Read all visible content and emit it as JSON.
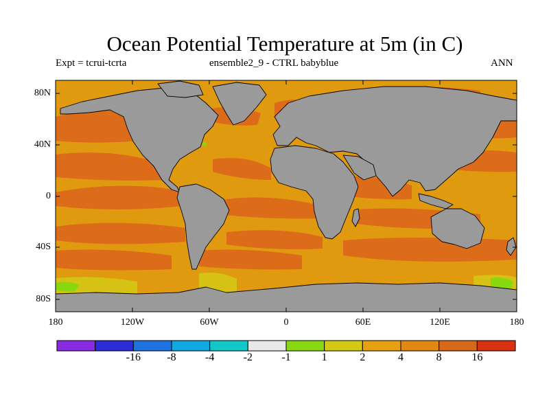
{
  "header": {
    "title": "Ocean Potential Temperature at 5m (in C)",
    "left": "Expt = tcrui-tcrta",
    "center": "ensemble2_9 - CTRL babyblue",
    "right": "ANN"
  },
  "axes": {
    "y_ticks": [
      "80N",
      "40N",
      "0",
      "40S",
      "80S"
    ],
    "x_ticks": [
      "180",
      "120W",
      "60W",
      "0",
      "60E",
      "120E",
      "180"
    ]
  },
  "colorbar": {
    "colors": [
      "#8a2be2",
      "#2b2bd9",
      "#1e72e0",
      "#10a8e0",
      "#10c8c8",
      "#e8e8e8",
      "#88d810",
      "#d4c810",
      "#e6a010",
      "#e08810",
      "#d86818",
      "#d83010"
    ],
    "labels": [
      "-16",
      "-8",
      "-4",
      "-2",
      "-1",
      "1",
      "2",
      "4",
      "8",
      "16"
    ]
  },
  "colors": {
    "land": "#9a9a9a",
    "ocean_main": "#e09a10",
    "ocean_warm": "#dc6c1a",
    "ocean_cool": "#d6c214",
    "coast": "#000000"
  }
}
